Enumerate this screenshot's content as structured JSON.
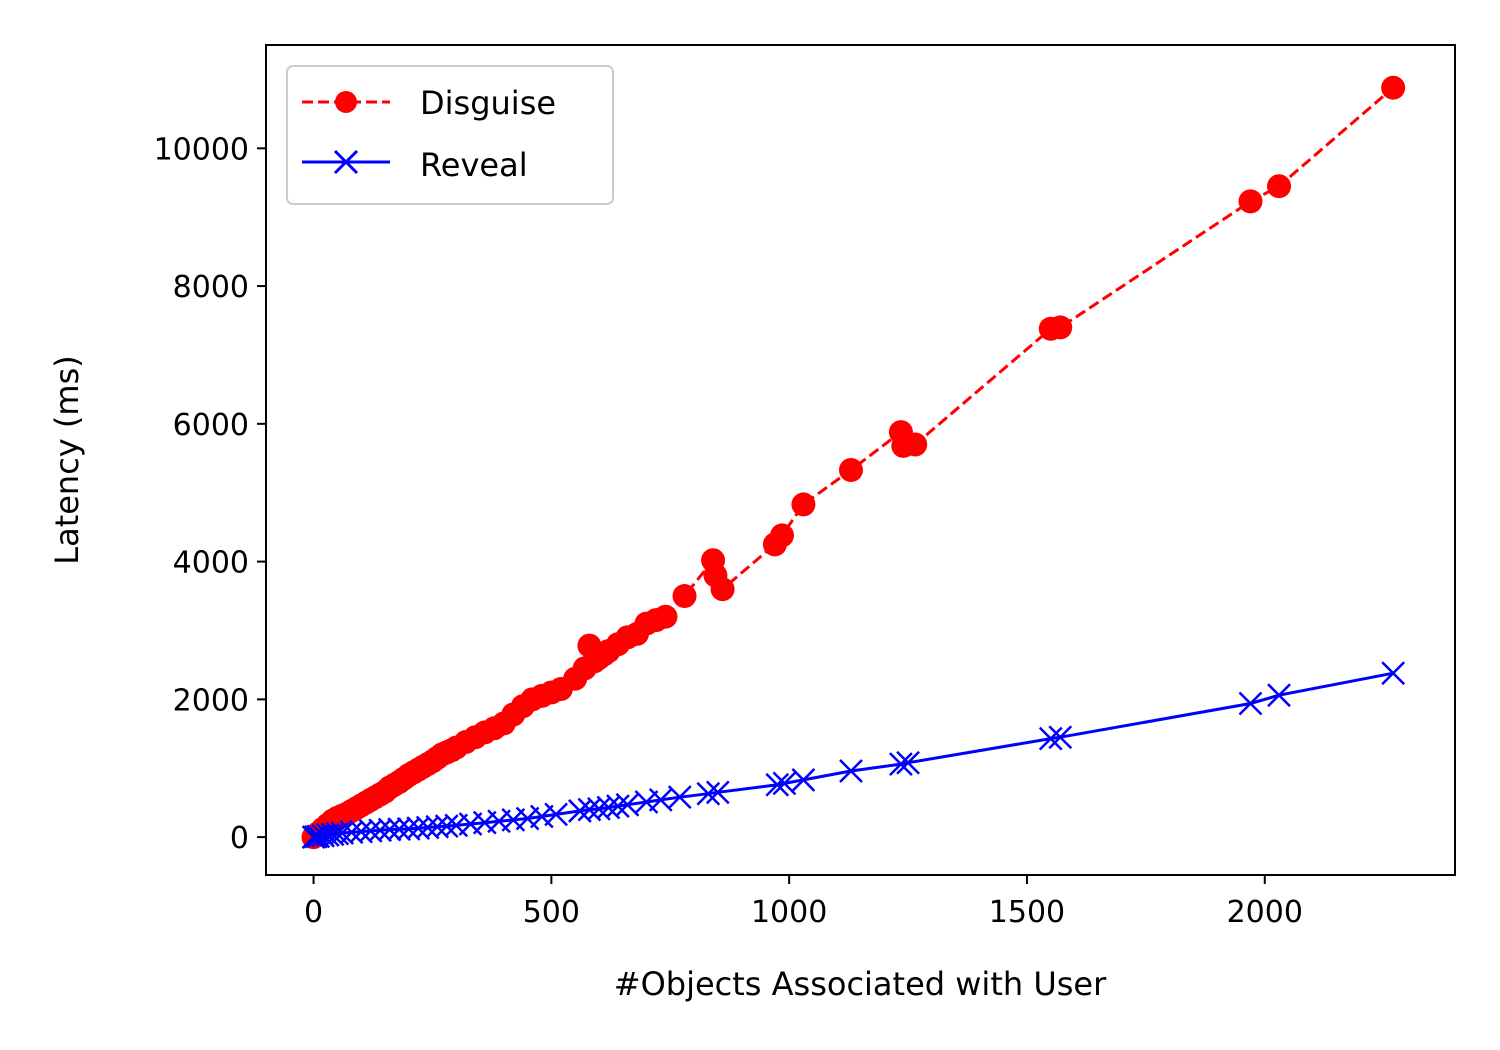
{
  "chart_data": {
    "type": "line",
    "xlabel": "#Objects Associated with User",
    "ylabel": "Latency (ms)",
    "xlim": [
      -100,
      2400
    ],
    "ylim": [
      -550,
      11500
    ],
    "xticks": [
      0,
      500,
      1000,
      1500,
      2000
    ],
    "yticks": [
      0,
      2000,
      4000,
      6000,
      8000,
      10000
    ],
    "grid": false,
    "legend_position": "top-left",
    "series": [
      {
        "name": "Disguise",
        "color": "#ff0000",
        "line_style": "dashed",
        "marker": "circle",
        "x": [
          0,
          5,
          10,
          20,
          30,
          40,
          50,
          60,
          70,
          80,
          90,
          100,
          110,
          120,
          130,
          140,
          150,
          160,
          170,
          180,
          190,
          200,
          210,
          220,
          230,
          240,
          250,
          260,
          270,
          280,
          290,
          300,
          320,
          340,
          360,
          380,
          400,
          420,
          440,
          460,
          480,
          500,
          520,
          550,
          570,
          580,
          590,
          600,
          610,
          620,
          640,
          660,
          680,
          700,
          720,
          740,
          780,
          840,
          845,
          860,
          970,
          985,
          1030,
          1130,
          1235,
          1240,
          1265,
          1550,
          1570,
          1970,
          2030,
          2270
        ],
        "y": [
          0,
          30,
          60,
          120,
          180,
          240,
          280,
          310,
          340,
          380,
          420,
          460,
          500,
          540,
          580,
          620,
          660,
          720,
          760,
          800,
          850,
          900,
          940,
          980,
          1020,
          1060,
          1100,
          1150,
          1200,
          1230,
          1260,
          1300,
          1380,
          1450,
          1520,
          1580,
          1650,
          1780,
          1900,
          2000,
          2050,
          2100,
          2150,
          2300,
          2450,
          2780,
          2550,
          2600,
          2650,
          2700,
          2800,
          2900,
          2950,
          3100,
          3150,
          3200,
          3500,
          4020,
          3800,
          3600,
          4250,
          4380,
          4830,
          5330,
          5880,
          5680,
          5700,
          7380,
          7400,
          9230,
          9450,
          10880
        ]
      },
      {
        "name": "Reveal",
        "color": "#0000ff",
        "line_style": "solid",
        "marker": "x",
        "x": [
          0,
          5,
          10,
          20,
          30,
          40,
          50,
          60,
          80,
          100,
          120,
          140,
          160,
          180,
          200,
          220,
          240,
          260,
          280,
          300,
          330,
          360,
          390,
          420,
          450,
          480,
          510,
          560,
          580,
          600,
          620,
          640,
          660,
          700,
          730,
          770,
          830,
          850,
          975,
          990,
          1030,
          1130,
          1235,
          1250,
          1550,
          1570,
          1970,
          2030,
          2270
        ],
        "y": [
          0,
          5,
          10,
          20,
          30,
          40,
          50,
          60,
          70,
          80,
          90,
          100,
          110,
          115,
          120,
          130,
          140,
          150,
          160,
          170,
          190,
          210,
          230,
          250,
          270,
          300,
          330,
          380,
          400,
          410,
          430,
          450,
          470,
          510,
          540,
          580,
          630,
          650,
          760,
          780,
          830,
          960,
          1060,
          1080,
          1430,
          1450,
          1940,
          2060,
          2380
        ]
      }
    ]
  }
}
